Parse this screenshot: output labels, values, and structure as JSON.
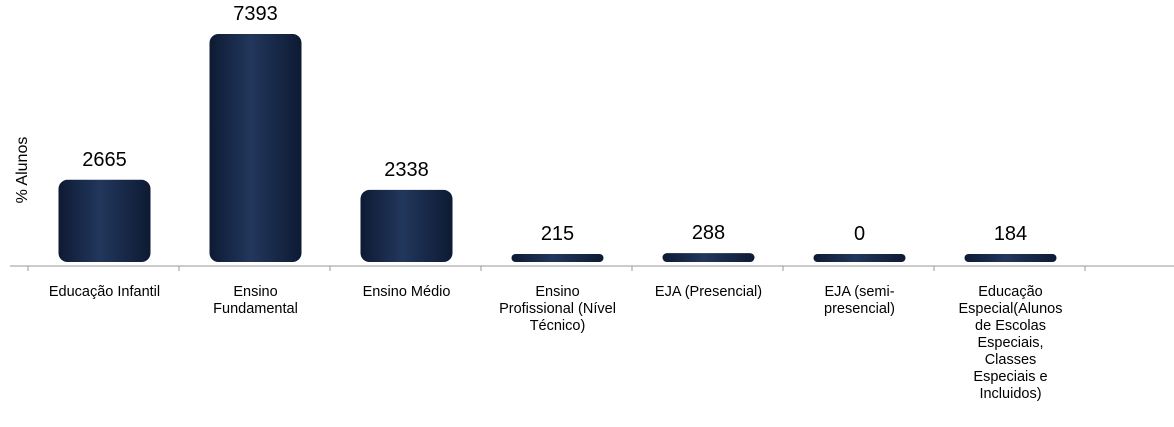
{
  "chart_data": {
    "type": "bar",
    "categories": [
      "Educação Infantil",
      "Ensino\nFundamental",
      "Ensino Médio",
      "Ensino\nProfissional (Nível\nTécnico)",
      "EJA (Presencial)",
      "EJA (semi-\npresencial)",
      "Educação\nEspecial(Alunos\nde Escolas\nEspeciais,\nClasses\nEspeciais e\nIncluidos)"
    ],
    "values": [
      2665,
      7393,
      2338,
      215,
      288,
      0,
      184
    ],
    "data_labels": [
      "2665",
      "7393",
      "2338",
      "215",
      "288",
      "0",
      "184"
    ],
    "title": "",
    "xlabel": "",
    "ylabel": "% Alunos",
    "ylim": [
      0,
      8000
    ],
    "grid": false,
    "legend": "none",
    "bar_color": "#1b2c4c"
  }
}
